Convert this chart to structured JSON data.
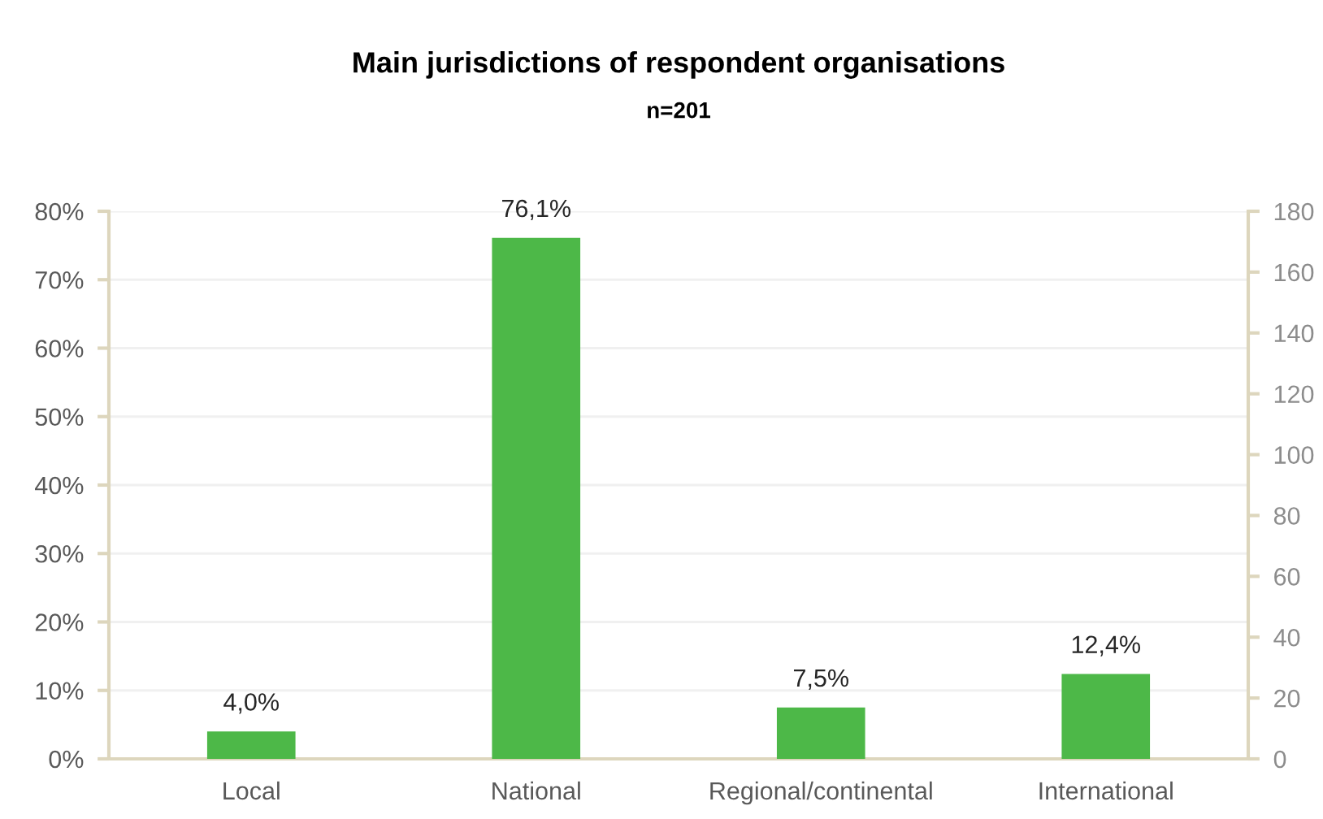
{
  "chart_data": {
    "type": "bar",
    "title": "Main jurisdictions of respondent organisations",
    "subtitle": "n=201",
    "categories": [
      "Local",
      "National",
      "Regional/continental",
      "International"
    ],
    "values": [
      4.0,
      76.1,
      7.5,
      12.4
    ],
    "color": "#4db848",
    "value_labels": [
      "4,0%",
      "76,1%",
      "7,5%",
      "12,4%"
    ],
    "ylim": [
      0,
      80
    ],
    "yticks": [
      {
        "value": 0,
        "label": "0%"
      },
      {
        "value": 10,
        "label": "10%"
      },
      {
        "value": 20,
        "label": "20%"
      },
      {
        "value": 30,
        "label": "30%"
      },
      {
        "value": 40,
        "label": "40%"
      },
      {
        "value": 50,
        "label": "50%"
      },
      {
        "value": 60,
        "label": "60%"
      },
      {
        "value": 70,
        "label": "70%"
      },
      {
        "value": 80,
        "label": "80%"
      }
    ],
    "y2lim": [
      0,
      180
    ],
    "y2ticks": [
      0,
      20,
      40,
      60,
      80,
      100,
      120,
      140,
      160,
      180
    ],
    "grid": true
  }
}
